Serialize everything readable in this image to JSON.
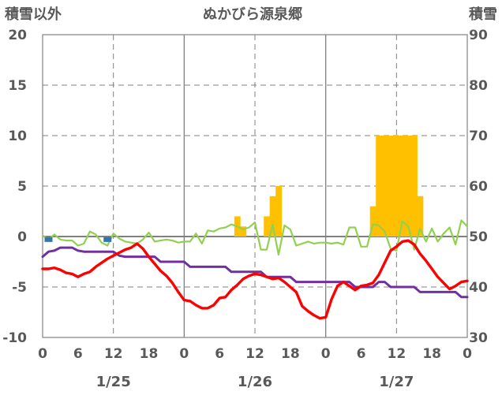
{
  "chart_data": {
    "type": "bar+line",
    "title": "ぬかびら源泉郷",
    "left_axis_title": "積雪以外",
    "right_axis_title": "積雪",
    "left_axis": {
      "min": -10,
      "max": 20,
      "ticks": [
        -10,
        -5,
        0,
        5,
        10,
        15,
        20
      ]
    },
    "right_axis": {
      "min": 30,
      "max": 90,
      "ticks": [
        30,
        40,
        50,
        60,
        70,
        80,
        90
      ]
    },
    "x_axis": {
      "range_hours": [
        0,
        72
      ],
      "tick_labels": [
        "0",
        "6",
        "12",
        "18",
        "0",
        "6",
        "12",
        "18",
        "0",
        "6",
        "12",
        "18",
        "0"
      ],
      "date_labels": [
        {
          "hour": 12,
          "label": "1/25"
        },
        {
          "hour": 36,
          "label": "1/26"
        },
        {
          "hour": 60,
          "label": "1/27"
        }
      ]
    },
    "colors": {
      "precipitation": "#ffc000",
      "temperature": "#ff0000",
      "dew_point": "#7030a0",
      "humidity_line": "#92d050",
      "wind_marker": "#2e75b6",
      "grid": "#808080"
    },
    "series": [
      {
        "key": "precip",
        "type": "bar",
        "axis": "left",
        "x": [
          33,
          34,
          38,
          39,
          40,
          56,
          57,
          58,
          59,
          60,
          61,
          62,
          63,
          64
        ],
        "values": [
          2,
          1,
          2,
          4,
          5,
          3,
          10,
          10,
          10,
          10,
          10,
          10,
          10,
          4
        ]
      },
      {
        "key": "temp",
        "type": "line",
        "axis": "left",
        "x": [
          0,
          1,
          2,
          3,
          4,
          5,
          6,
          7,
          8,
          9,
          10,
          11,
          12,
          13,
          14,
          15,
          16,
          17,
          18,
          19,
          20,
          21,
          22,
          23,
          24,
          25,
          26,
          27,
          28,
          29,
          30,
          31,
          32,
          33,
          34,
          35,
          36,
          37,
          38,
          39,
          40,
          41,
          42,
          43,
          44,
          45,
          46,
          47,
          48,
          49,
          50,
          51,
          52,
          53,
          54,
          55,
          56,
          57,
          58,
          59,
          60,
          61,
          62,
          63,
          64,
          65,
          66,
          67,
          68,
          69,
          70,
          71,
          72
        ],
        "values": [
          -3.2,
          -3.2,
          -3.1,
          -3.3,
          -3.6,
          -3.7,
          -4.0,
          -3.7,
          -3.5,
          -3.0,
          -2.6,
          -2.2,
          -1.9,
          -1.6,
          -1.3,
          -1.1,
          -0.7,
          -1.2,
          -2.0,
          -2.7,
          -3.4,
          -3.9,
          -4.6,
          -5.5,
          -6.3,
          -6.4,
          -6.8,
          -7.1,
          -7.1,
          -6.8,
          -6.1,
          -6.0,
          -5.3,
          -4.8,
          -4.2,
          -3.9,
          -3.7,
          -3.8,
          -4.0,
          -4.2,
          -4.1,
          -4.5,
          -5.0,
          -5.5,
          -6.9,
          -7.4,
          -7.8,
          -8.1,
          -8.0,
          -6.2,
          -4.9,
          -4.5,
          -4.9,
          -5.3,
          -4.9,
          -4.8,
          -4.6,
          -3.8,
          -2.6,
          -1.4,
          -1.0,
          -0.5,
          -0.4,
          -0.8,
          -1.7,
          -2.4,
          -3.2,
          -4.0,
          -4.6,
          -5.2,
          -4.9,
          -4.5,
          -4.4
        ]
      },
      {
        "key": "dew",
        "type": "line",
        "axis": "left",
        "x": [
          0,
          1,
          2,
          3,
          4,
          5,
          6,
          7,
          8,
          9,
          10,
          11,
          12,
          13,
          14,
          15,
          16,
          17,
          18,
          19,
          20,
          21,
          22,
          23,
          24,
          25,
          26,
          27,
          28,
          29,
          30,
          31,
          32,
          33,
          34,
          35,
          36,
          37,
          38,
          39,
          40,
          41,
          42,
          43,
          44,
          45,
          46,
          47,
          48,
          49,
          50,
          51,
          52,
          53,
          54,
          55,
          56,
          57,
          58,
          59,
          60,
          61,
          62,
          63,
          64,
          65,
          66,
          67,
          68,
          69,
          70,
          71,
          72
        ],
        "values": [
          -2.0,
          -1.5,
          -1.4,
          -1.1,
          -1.1,
          -1.1,
          -1.4,
          -1.5,
          -1.5,
          -1.5,
          -1.5,
          -1.5,
          -1.5,
          -1.9,
          -2.0,
          -2.0,
          -2.0,
          -2.0,
          -2.0,
          -2.0,
          -2.5,
          -2.5,
          -2.5,
          -2.5,
          -2.5,
          -3.0,
          -3.0,
          -3.0,
          -3.0,
          -3.0,
          -3.0,
          -3.0,
          -3.5,
          -3.5,
          -3.5,
          -3.5,
          -3.5,
          -3.5,
          -4.0,
          -4.0,
          -4.0,
          -4.0,
          -4.0,
          -4.5,
          -4.5,
          -4.5,
          -4.5,
          -4.5,
          -4.5,
          -4.5,
          -4.5,
          -4.5,
          -4.5,
          -5.0,
          -5.0,
          -5.0,
          -5.0,
          -4.5,
          -4.5,
          -5.0,
          -5.0,
          -5.0,
          -5.0,
          -5.0,
          -5.5,
          -5.5,
          -5.5,
          -5.5,
          -5.5,
          -5.5,
          -5.5,
          -6.0,
          -6.0
        ]
      },
      {
        "key": "humid",
        "type": "line",
        "axis": "left",
        "x": [
          0,
          1,
          2,
          3,
          4,
          5,
          6,
          7,
          8,
          9,
          10,
          11,
          12,
          13,
          14,
          15,
          16,
          17,
          18,
          19,
          20,
          21,
          22,
          23,
          24,
          25,
          26,
          27,
          28,
          29,
          30,
          31,
          32,
          33,
          34,
          35,
          36,
          37,
          38,
          39,
          40,
          41,
          42,
          43,
          44,
          45,
          46,
          47,
          48,
          49,
          50,
          51,
          52,
          53,
          54,
          55,
          56,
          57,
          58,
          59,
          60,
          61,
          62,
          63,
          64,
          65,
          66,
          67,
          68,
          69,
          70,
          71,
          72
        ],
        "values": [
          0.1,
          -0.3,
          0.2,
          -0.3,
          -0.4,
          -0.4,
          -0.9,
          -0.7,
          0.5,
          0.2,
          -0.6,
          -0.9,
          0.3,
          -0.2,
          -0.5,
          -0.6,
          -0.7,
          -0.3,
          0.4,
          -0.5,
          -0.4,
          -0.3,
          -0.4,
          -0.6,
          -0.5,
          -0.5,
          0.3,
          -0.7,
          0.6,
          0.5,
          0.8,
          0.9,
          1.2,
          1.0,
          0.7,
          0.9,
          1.4,
          -1.3,
          -1.3,
          1.2,
          -1.8,
          1.1,
          0.7,
          -0.9,
          -0.7,
          -0.5,
          -0.7,
          -0.6,
          -0.6,
          -0.7,
          -0.6,
          -0.8,
          0.9,
          0.9,
          -1.0,
          -1.0,
          1.2,
          1.1,
          0.5,
          -1.2,
          -1.4,
          1.5,
          1.0,
          -1.3,
          0.8,
          -0.5,
          0.8,
          -0.5,
          0.3,
          0.9,
          -0.8,
          1.6,
          1.0
        ]
      },
      {
        "key": "wind",
        "type": "marker",
        "axis": "left",
        "x": [
          1,
          11
        ],
        "values": [
          -0.3,
          -0.3
        ]
      }
    ]
  }
}
